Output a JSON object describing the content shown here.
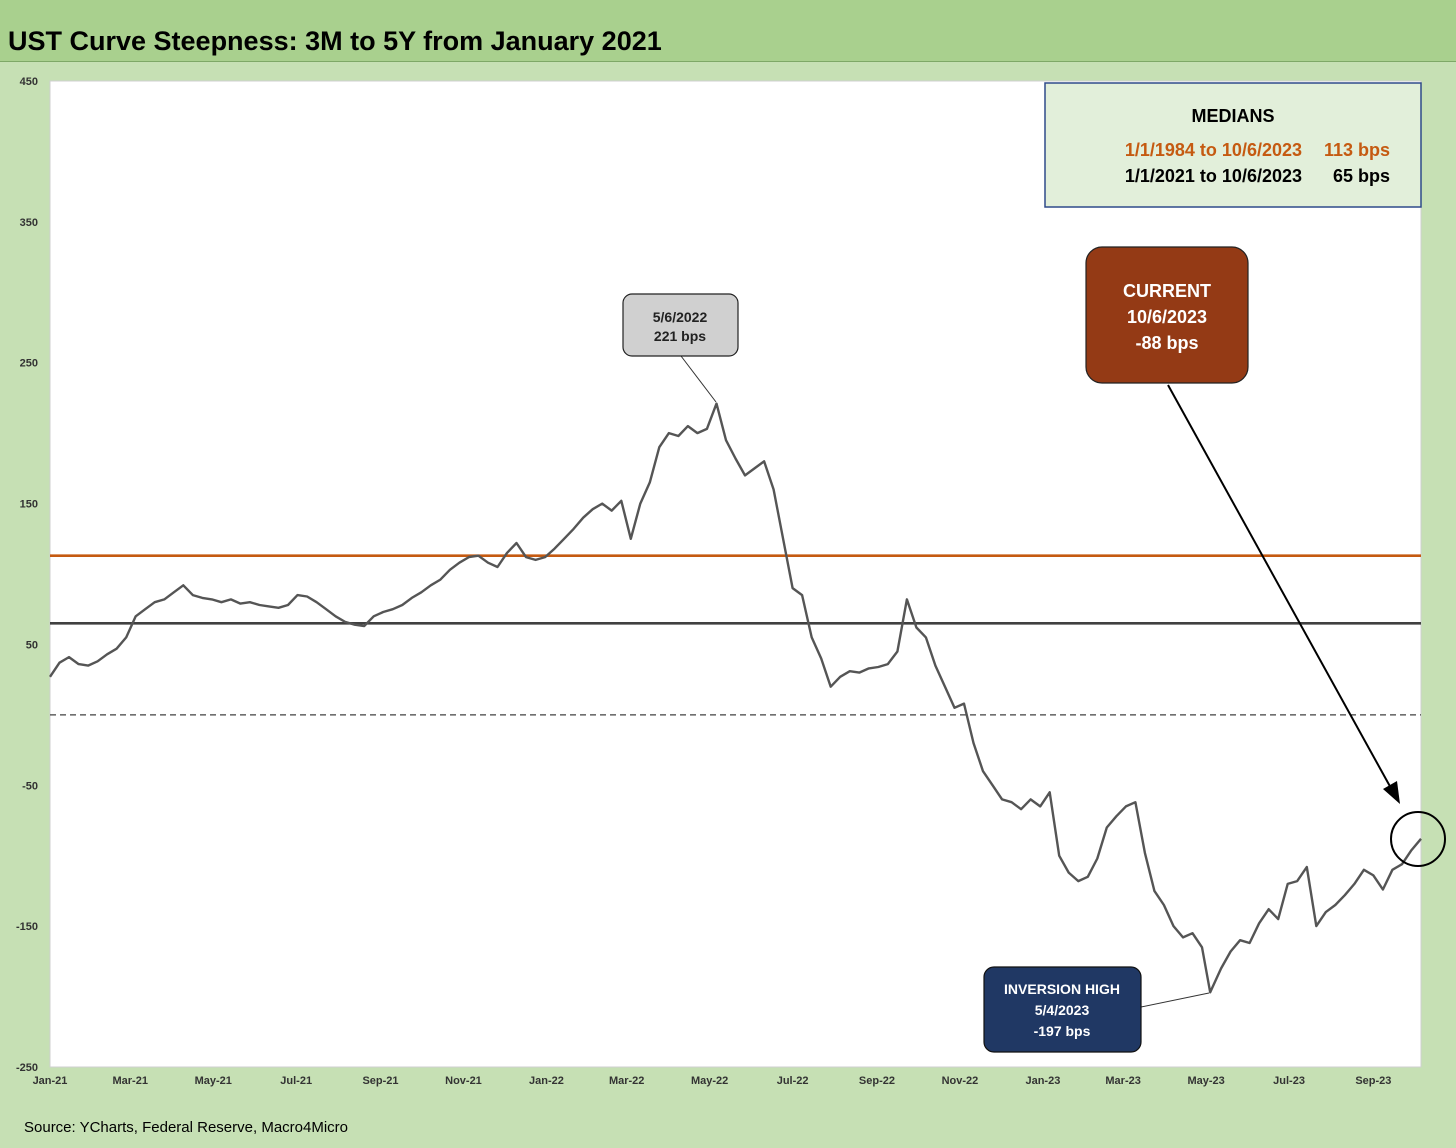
{
  "title": "UST Curve Steepness: 3M to 5Y from January 2021",
  "source": "Source: YCharts, Federal Reserve, Macro4Micro",
  "colors": {
    "background": "#c6e0b4",
    "title_bar": "#a9d08e",
    "series_line": "#555555",
    "median_long": "#c55a11",
    "median_short": "#404040",
    "current_box": "#943a15",
    "inversion_box": "#203864",
    "peak_box": "#d0d0d0"
  },
  "medians_box": {
    "heading": "MEDIANS",
    "rows": [
      {
        "period": "1/1/1984 to 10/6/2023",
        "value": "113 bps",
        "color": "#c55a11"
      },
      {
        "period": "1/1/2021 to 10/6/2023",
        "value": "65 bps",
        "color": "#000000"
      }
    ]
  },
  "annotations": {
    "peak": {
      "line1": "5/6/2022",
      "line2": "221 bps"
    },
    "current": {
      "line1": "CURRENT",
      "line2": "10/6/2023",
      "line3": "-88 bps"
    },
    "inversion": {
      "line1": "INVERSION HIGH",
      "line2": "5/4/2023",
      "line3": "-197 bps"
    }
  },
  "chart_data": {
    "type": "line",
    "title": "UST Curve Steepness: 3M to 5Y from January 2021",
    "xlabel": "",
    "ylabel": "",
    "ylim": [
      -250,
      450
    ],
    "yticks": [
      450,
      350,
      250,
      150,
      50,
      -50,
      -150,
      -250
    ],
    "x_range": [
      "2021-01-01",
      "2023-10-06"
    ],
    "xticks": [
      {
        "date": "2021-01-01",
        "label": "Jan-21"
      },
      {
        "date": "2021-03-01",
        "label": "Mar-21"
      },
      {
        "date": "2021-05-01",
        "label": "May-21"
      },
      {
        "date": "2021-07-01",
        "label": "Jul-21"
      },
      {
        "date": "2021-09-01",
        "label": "Sep-21"
      },
      {
        "date": "2021-11-01",
        "label": "Nov-21"
      },
      {
        "date": "2022-01-01",
        "label": "Jan-22"
      },
      {
        "date": "2022-03-01",
        "label": "Mar-22"
      },
      {
        "date": "2022-05-01",
        "label": "May-22"
      },
      {
        "date": "2022-07-01",
        "label": "Jul-22"
      },
      {
        "date": "2022-09-01",
        "label": "Sep-22"
      },
      {
        "date": "2022-11-01",
        "label": "Nov-22"
      },
      {
        "date": "2023-01-01",
        "label": "Jan-23"
      },
      {
        "date": "2023-03-01",
        "label": "Mar-23"
      },
      {
        "date": "2023-05-01",
        "label": "May-23"
      },
      {
        "date": "2023-07-01",
        "label": "Jul-23"
      },
      {
        "date": "2023-09-01",
        "label": "Sep-23"
      }
    ],
    "grid": false,
    "reference_lines": [
      {
        "value": 113,
        "color": "#c55a11",
        "style": "solid"
      },
      {
        "value": 65,
        "color": "#404040",
        "style": "solid"
      },
      {
        "value": 0,
        "color": "#404040",
        "style": "dashed"
      }
    ],
    "series": [
      {
        "color": "#555555",
        "points": [
          [
            "2021-01-01",
            27
          ],
          [
            "2021-01-08",
            37
          ],
          [
            "2021-01-15",
            41
          ],
          [
            "2021-01-22",
            36
          ],
          [
            "2021-01-29",
            35
          ],
          [
            "2021-02-05",
            38
          ],
          [
            "2021-02-12",
            43
          ],
          [
            "2021-02-19",
            47
          ],
          [
            "2021-02-26",
            55
          ],
          [
            "2021-03-05",
            70
          ],
          [
            "2021-03-12",
            75
          ],
          [
            "2021-03-19",
            80
          ],
          [
            "2021-03-26",
            82
          ],
          [
            "2021-04-02",
            87
          ],
          [
            "2021-04-09",
            92
          ],
          [
            "2021-04-16",
            85
          ],
          [
            "2021-04-23",
            83
          ],
          [
            "2021-04-30",
            82
          ],
          [
            "2021-05-07",
            80
          ],
          [
            "2021-05-14",
            82
          ],
          [
            "2021-05-21",
            79
          ],
          [
            "2021-05-28",
            80
          ],
          [
            "2021-06-04",
            78
          ],
          [
            "2021-06-11",
            77
          ],
          [
            "2021-06-18",
            76
          ],
          [
            "2021-06-25",
            78
          ],
          [
            "2021-07-02",
            85
          ],
          [
            "2021-07-09",
            84
          ],
          [
            "2021-07-16",
            80
          ],
          [
            "2021-07-23",
            75
          ],
          [
            "2021-07-30",
            70
          ],
          [
            "2021-08-06",
            66
          ],
          [
            "2021-08-13",
            64
          ],
          [
            "2021-08-20",
            63
          ],
          [
            "2021-08-27",
            70
          ],
          [
            "2021-09-03",
            73
          ],
          [
            "2021-09-10",
            75
          ],
          [
            "2021-09-17",
            78
          ],
          [
            "2021-09-24",
            83
          ],
          [
            "2021-10-01",
            87
          ],
          [
            "2021-10-08",
            92
          ],
          [
            "2021-10-15",
            96
          ],
          [
            "2021-10-22",
            103
          ],
          [
            "2021-10-29",
            108
          ],
          [
            "2021-11-05",
            112
          ],
          [
            "2021-11-12",
            113
          ],
          [
            "2021-11-19",
            108
          ],
          [
            "2021-11-26",
            105
          ],
          [
            "2021-12-03",
            115
          ],
          [
            "2021-12-10",
            122
          ],
          [
            "2021-12-17",
            112
          ],
          [
            "2021-12-24",
            110
          ],
          [
            "2021-12-31",
            112
          ],
          [
            "2022-01-07",
            118
          ],
          [
            "2022-01-14",
            125
          ],
          [
            "2022-01-21",
            132
          ],
          [
            "2022-01-28",
            140
          ],
          [
            "2022-02-04",
            146
          ],
          [
            "2022-02-11",
            150
          ],
          [
            "2022-02-18",
            145
          ],
          [
            "2022-02-25",
            152
          ],
          [
            "2022-03-04",
            125
          ],
          [
            "2022-03-11",
            150
          ],
          [
            "2022-03-18",
            165
          ],
          [
            "2022-03-25",
            190
          ],
          [
            "2022-04-01",
            200
          ],
          [
            "2022-04-08",
            198
          ],
          [
            "2022-04-15",
            205
          ],
          [
            "2022-04-22",
            200
          ],
          [
            "2022-04-29",
            203
          ],
          [
            "2022-05-06",
            221
          ],
          [
            "2022-05-13",
            195
          ],
          [
            "2022-05-20",
            182
          ],
          [
            "2022-05-27",
            170
          ],
          [
            "2022-06-03",
            175
          ],
          [
            "2022-06-10",
            180
          ],
          [
            "2022-06-17",
            160
          ],
          [
            "2022-06-24",
            125
          ],
          [
            "2022-07-01",
            90
          ],
          [
            "2022-07-08",
            85
          ],
          [
            "2022-07-15",
            55
          ],
          [
            "2022-07-22",
            40
          ],
          [
            "2022-07-29",
            20
          ],
          [
            "2022-08-05",
            27
          ],
          [
            "2022-08-12",
            31
          ],
          [
            "2022-08-19",
            30
          ],
          [
            "2022-08-26",
            33
          ],
          [
            "2022-09-02",
            34
          ],
          [
            "2022-09-09",
            36
          ],
          [
            "2022-09-16",
            45
          ],
          [
            "2022-09-23",
            82
          ],
          [
            "2022-09-30",
            62
          ],
          [
            "2022-10-07",
            55
          ],
          [
            "2022-10-14",
            35
          ],
          [
            "2022-10-21",
            20
          ],
          [
            "2022-10-28",
            5
          ],
          [
            "2022-11-04",
            8
          ],
          [
            "2022-11-11",
            -20
          ],
          [
            "2022-11-18",
            -40
          ],
          [
            "2022-11-25",
            -50
          ],
          [
            "2022-12-02",
            -60
          ],
          [
            "2022-12-09",
            -62
          ],
          [
            "2022-12-16",
            -67
          ],
          [
            "2022-12-23",
            -60
          ],
          [
            "2022-12-30",
            -65
          ],
          [
            "2023-01-06",
            -55
          ],
          [
            "2023-01-13",
            -100
          ],
          [
            "2023-01-20",
            -112
          ],
          [
            "2023-01-27",
            -118
          ],
          [
            "2023-02-03",
            -115
          ],
          [
            "2023-02-10",
            -102
          ],
          [
            "2023-02-17",
            -80
          ],
          [
            "2023-02-24",
            -72
          ],
          [
            "2023-03-03",
            -65
          ],
          [
            "2023-03-10",
            -62
          ],
          [
            "2023-03-17",
            -98
          ],
          [
            "2023-03-24",
            -125
          ],
          [
            "2023-03-31",
            -135
          ],
          [
            "2023-04-07",
            -150
          ],
          [
            "2023-04-14",
            -158
          ],
          [
            "2023-04-21",
            -155
          ],
          [
            "2023-04-28",
            -165
          ],
          [
            "2023-05-04",
            -197
          ],
          [
            "2023-05-12",
            -180
          ],
          [
            "2023-05-19",
            -168
          ],
          [
            "2023-05-26",
            -160
          ],
          [
            "2023-06-02",
            -162
          ],
          [
            "2023-06-09",
            -148
          ],
          [
            "2023-06-16",
            -138
          ],
          [
            "2023-06-23",
            -145
          ],
          [
            "2023-06-30",
            -120
          ],
          [
            "2023-07-07",
            -118
          ],
          [
            "2023-07-14",
            -108
          ],
          [
            "2023-07-21",
            -150
          ],
          [
            "2023-07-28",
            -140
          ],
          [
            "2023-08-04",
            -135
          ],
          [
            "2023-08-11",
            -128
          ],
          [
            "2023-08-18",
            -120
          ],
          [
            "2023-08-25",
            -110
          ],
          [
            "2023-09-01",
            -114
          ],
          [
            "2023-09-08",
            -124
          ],
          [
            "2023-09-15",
            -110
          ],
          [
            "2023-09-22",
            -106
          ],
          [
            "2023-09-29",
            -96
          ],
          [
            "2023-10-06",
            -88
          ]
        ]
      }
    ]
  }
}
